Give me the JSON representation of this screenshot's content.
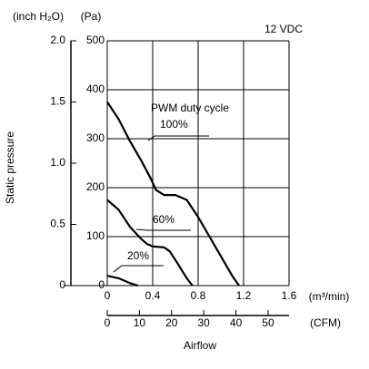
{
  "chart_data": {
    "type": "line",
    "annotations": [
      "12 VDC",
      "PWM duty cycle"
    ],
    "y_label": "Static pressure",
    "y_unit": "(Pa)",
    "y2_unit": "(inch H₂O)",
    "x_label": "Airflow",
    "x_unit": "(m³/min)",
    "x2_unit": "(CFM)",
    "xlim": [
      0,
      1.6
    ],
    "xticks": [
      0,
      0.4,
      0.8,
      1.2,
      1.6
    ],
    "x2lim": [
      0,
      56.5
    ],
    "x2ticks": [
      0,
      10,
      20,
      30,
      40,
      50
    ],
    "ylim": [
      0,
      500
    ],
    "yticks": [
      0,
      100,
      200,
      300,
      400,
      500
    ],
    "y2lim": [
      0,
      2.0
    ],
    "y2ticks": [
      0,
      0.5,
      {
        "value": 1,
        "label": "1.0"
      },
      1.5,
      {
        "value": 2,
        "label": "2.0"
      }
    ],
    "grid": true,
    "series": [
      {
        "name": "100%",
        "color": "#000000",
        "x": [
          0,
          0.1,
          0.2,
          0.3,
          0.38,
          0.43,
          0.5,
          0.6,
          0.7,
          0.8,
          0.9,
          1.0,
          1.1,
          1.16
        ],
        "values": [
          375,
          340,
          295,
          255,
          220,
          195,
          185,
          185,
          175,
          140,
          100,
          60,
          20,
          0
        ]
      },
      {
        "name": "60%",
        "color": "#000000",
        "x": [
          0,
          0.1,
          0.2,
          0.3,
          0.35,
          0.4,
          0.5,
          0.55,
          0.62,
          0.7,
          0.75
        ],
        "values": [
          175,
          155,
          120,
          95,
          85,
          80,
          78,
          70,
          45,
          15,
          0
        ]
      },
      {
        "name": "20%",
        "color": "#000000",
        "x": [
          0,
          0.1,
          0.2,
          0.27
        ],
        "values": [
          20,
          15,
          5,
          0
        ]
      }
    ]
  }
}
